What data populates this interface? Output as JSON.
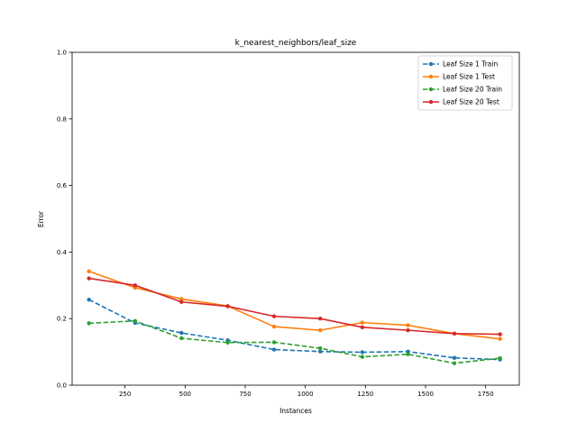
{
  "chart_data": {
    "type": "line",
    "title": "k_nearest_neighbors/leaf_size",
    "xlabel": "Instances",
    "ylabel": "Error",
    "xlim": [
      30,
      1890
    ],
    "ylim": [
      0.0,
      1.0
    ],
    "xticks": [
      250,
      500,
      750,
      1000,
      1250,
      1500,
      1750
    ],
    "yticks": [
      0.0,
      0.2,
      0.4,
      0.6,
      0.8,
      1.0
    ],
    "xtick_labels": [
      "250",
      "500",
      "750",
      "1000",
      "1250",
      "1500",
      "1750"
    ],
    "ytick_labels": [
      "0.0",
      "0.2",
      "0.4",
      "0.6",
      "0.8",
      "1.0"
    ],
    "grid": false,
    "legend_position": "top-right",
    "x": [
      100,
      292,
      485,
      677,
      870,
      1062,
      1237,
      1427,
      1620,
      1810
    ],
    "series": [
      {
        "name": "Leaf Size 1 Train",
        "color": "#1f77b4",
        "style": "dashed",
        "values": [
          0.257,
          0.187,
          0.157,
          0.135,
          0.107,
          0.101,
          0.099,
          0.101,
          0.082,
          0.077
        ]
      },
      {
        "name": "Leaf Size 1 Test",
        "color": "#ff7f0e",
        "style": "solid",
        "values": [
          0.342,
          0.293,
          0.259,
          0.238,
          0.176,
          0.165,
          0.188,
          0.18,
          0.155,
          0.139
        ]
      },
      {
        "name": "Leaf Size 20 Train",
        "color": "#2ca02c",
        "style": "dashed",
        "values": [
          0.186,
          0.193,
          0.141,
          0.128,
          0.129,
          0.111,
          0.085,
          0.093,
          0.066,
          0.081
        ]
      },
      {
        "name": "Leaf Size 20 Test",
        "color": "#d62728",
        "style": "solid",
        "values": [
          0.321,
          0.3,
          0.25,
          0.237,
          0.207,
          0.2,
          0.174,
          0.165,
          0.155,
          0.153
        ]
      }
    ]
  }
}
